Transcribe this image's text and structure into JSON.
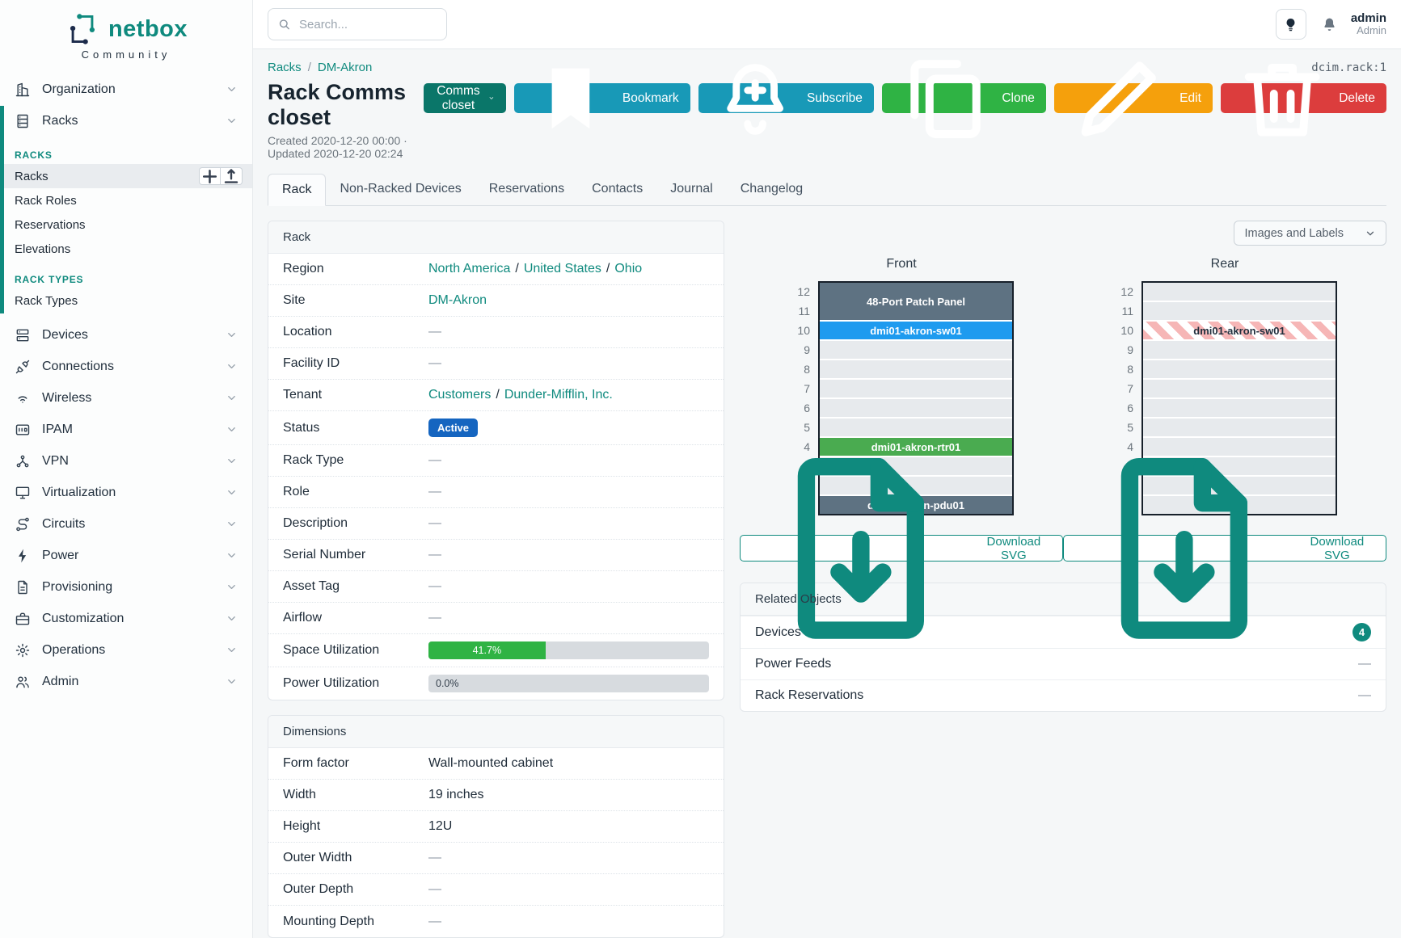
{
  "app": {
    "brand": "netbox",
    "brand_sub": "Community"
  },
  "topbar": {
    "search_placeholder": "Search...",
    "user_name": "admin",
    "user_role": "Admin"
  },
  "sidebar": {
    "items": [
      {
        "type": "group",
        "label": "Organization",
        "icon": "organization-icon"
      },
      {
        "type": "group",
        "label": "Racks",
        "icon": "rack-icon",
        "expanded": true
      },
      {
        "type": "section",
        "label": "RACKS"
      },
      {
        "type": "link",
        "label": "Racks",
        "active": true,
        "quick_add": true
      },
      {
        "type": "link",
        "label": "Rack Roles"
      },
      {
        "type": "link",
        "label": "Reservations"
      },
      {
        "type": "link",
        "label": "Elevations"
      },
      {
        "type": "section",
        "label": "RACK TYPES"
      },
      {
        "type": "link",
        "label": "Rack Types"
      },
      {
        "type": "group",
        "label": "Devices",
        "icon": "devices-icon",
        "first_after_section": true
      },
      {
        "type": "group",
        "label": "Connections",
        "icon": "connections-icon"
      },
      {
        "type": "group",
        "label": "Wireless",
        "icon": "wireless-icon"
      },
      {
        "type": "group",
        "label": "IPAM",
        "icon": "ipam-icon"
      },
      {
        "type": "group",
        "label": "VPN",
        "icon": "vpn-icon"
      },
      {
        "type": "group",
        "label": "Virtualization",
        "icon": "virtualization-icon"
      },
      {
        "type": "group",
        "label": "Circuits",
        "icon": "circuits-icon"
      },
      {
        "type": "group",
        "label": "Power",
        "icon": "power-icon"
      },
      {
        "type": "group",
        "label": "Provisioning",
        "icon": "provisioning-icon"
      },
      {
        "type": "group",
        "label": "Customization",
        "icon": "customization-icon"
      },
      {
        "type": "group",
        "label": "Operations",
        "icon": "operations-icon"
      },
      {
        "type": "group",
        "label": "Admin",
        "icon": "admin-icon"
      }
    ]
  },
  "page": {
    "breadcrumb": [
      "Racks",
      "DM-Akron"
    ],
    "object_id": "dcim.rack:1",
    "title": "Rack Comms closet",
    "meta": "Created 2020-12-20 00:00 · Updated 2020-12-20 02:24",
    "actions": [
      {
        "label": "Comms closet",
        "color": "#0a7669",
        "chevron": true
      },
      {
        "label": "Bookmark",
        "icon": "bookmark-icon",
        "color": "#1899b7"
      },
      {
        "label": "Subscribe",
        "icon": "bell-plus-icon",
        "color": "#1899b7"
      },
      {
        "label": "Clone",
        "icon": "copy-icon",
        "color": "#2fb344"
      },
      {
        "label": "Edit",
        "icon": "pencil-icon",
        "color": "#f5a00c"
      },
      {
        "label": "Delete",
        "icon": "trash-icon",
        "color": "#dc3d3d"
      }
    ],
    "tabs": [
      {
        "label": "Rack",
        "active": true
      },
      {
        "label": "Non-Racked Devices"
      },
      {
        "label": "Reservations"
      },
      {
        "label": "Contacts"
      },
      {
        "label": "Journal"
      },
      {
        "label": "Changelog"
      }
    ]
  },
  "rack_panel": {
    "title": "Rack",
    "rows": [
      {
        "label": "Region",
        "links": [
          "North America",
          "United States",
          "Ohio"
        ]
      },
      {
        "label": "Site",
        "links": [
          "DM-Akron"
        ]
      },
      {
        "label": "Location",
        "value": "—"
      },
      {
        "label": "Facility ID",
        "value": "—"
      },
      {
        "label": "Tenant",
        "links": [
          "Customers",
          "Dunder-Mifflin, Inc."
        ]
      },
      {
        "label": "Status",
        "badge": {
          "text": "Active",
          "color": "#1565c0"
        }
      },
      {
        "label": "Rack Type",
        "value": "—"
      },
      {
        "label": "Role",
        "value": "—"
      },
      {
        "label": "Description",
        "value": "—"
      },
      {
        "label": "Serial Number",
        "value": "—"
      },
      {
        "label": "Asset Tag",
        "value": "—"
      },
      {
        "label": "Airflow",
        "value": "—"
      },
      {
        "label": "Space Utilization",
        "progress": {
          "percent": 41.7,
          "text": "41.7%",
          "color": "#2fb344"
        }
      },
      {
        "label": "Power Utilization",
        "progress": {
          "percent": 0,
          "text": "0.0%",
          "color": "#2fb344"
        }
      }
    ]
  },
  "dimensions_panel": {
    "title": "Dimensions",
    "rows": [
      {
        "label": "Form factor",
        "value": "Wall-mounted cabinet"
      },
      {
        "label": "Width",
        "value": "19 inches"
      },
      {
        "label": "Height",
        "value": "12U"
      },
      {
        "label": "Outer Width",
        "value": "—"
      },
      {
        "label": "Outer Depth",
        "value": "—"
      },
      {
        "label": "Mounting Depth",
        "value": "—"
      }
    ]
  },
  "elevations": {
    "view_control_label": "Images and Labels",
    "download_label": "Download SVG",
    "total_units": 12,
    "front": {
      "title": "Front",
      "slots": [
        {
          "top_unit": 12,
          "span": 2,
          "label": "48-Port Patch Panel",
          "bg": "#5e7282",
          "fg": "#ffffff"
        },
        {
          "top_unit": 10,
          "span": 1,
          "label": "dmi01-akron-sw01",
          "bg": "#1e9bef",
          "fg": "#ffffff"
        },
        {
          "top_unit": 4,
          "span": 1,
          "label": "dmi01-akron-rtr01",
          "bg": "#4aab50",
          "fg": "#ffffff"
        },
        {
          "top_unit": 1,
          "span": 1,
          "label": "dmi01-akron-pdu01",
          "bg": "#5e7282",
          "fg": "#ffffff"
        }
      ]
    },
    "rear": {
      "title": "Rear",
      "slots": [
        {
          "top_unit": 10,
          "span": 1,
          "label": "dmi01-akron-sw01",
          "hatched": true,
          "fg": "#22303e"
        }
      ]
    }
  },
  "related_panel": {
    "title": "Related Objects",
    "rows": [
      {
        "label": "Devices",
        "count": "4"
      },
      {
        "label": "Power Feeds",
        "value": "—"
      },
      {
        "label": "Rack Reservations",
        "value": "—"
      }
    ]
  },
  "icons": {
    "search-icon": "magnifier",
    "lightbulb-icon": "bulb",
    "bell-icon": "bell",
    "bookmark-icon": "bookmark",
    "bell-plus-icon": "bell-plus",
    "copy-icon": "copy",
    "pencil-icon": "pencil",
    "trash-icon": "trash",
    "chevron-down-icon": "chevron-down",
    "plus-icon": "plus",
    "import-icon": "arrow-up-from-line",
    "file-download-icon": "file-arrow-down",
    "netbox-logo-icon": "netbox-mark"
  },
  "colors": {
    "brand_teal": "#0f8a7e",
    "status_active": "#1565c0",
    "utilization_green": "#2fb344"
  }
}
